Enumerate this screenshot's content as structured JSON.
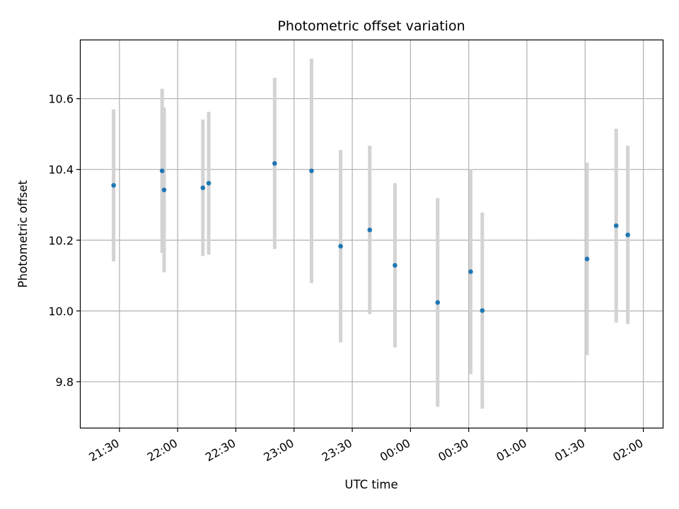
{
  "chart_data": {
    "type": "scatter",
    "title": "Photometric offset variation",
    "xlabel": "UTC time",
    "ylabel": "Photometric offset",
    "grid": true,
    "x_is_time": true,
    "xlim": [
      "21:10",
      "02:10"
    ],
    "ylim": [
      9.67,
      10.765
    ],
    "x_ticks": [
      "21:30",
      "22:00",
      "22:30",
      "23:00",
      "23:30",
      "00:00",
      "00:30",
      "01:00",
      "01:30",
      "02:00"
    ],
    "y_ticks": [
      9.8,
      10.0,
      10.2,
      10.4,
      10.6
    ],
    "y_tick_labels": [
      "9.8",
      "10.0",
      "10.2",
      "10.4",
      "10.6"
    ],
    "colors": {
      "point": "#1f77b4",
      "errorbar": "#d3d3d3",
      "grid": "#b0b0b0"
    },
    "points": [
      {
        "x": "21:27",
        "y": 10.355,
        "err": 0.215
      },
      {
        "x": "21:52",
        "y": 10.396,
        "err": 0.232
      },
      {
        "x": "21:53",
        "y": 10.342,
        "err": 0.233
      },
      {
        "x": "22:13",
        "y": 10.348,
        "err": 0.193
      },
      {
        "x": "22:16",
        "y": 10.361,
        "err": 0.202
      },
      {
        "x": "22:50",
        "y": 10.417,
        "err": 0.242
      },
      {
        "x": "23:09",
        "y": 10.396,
        "err": 0.317
      },
      {
        "x": "23:24",
        "y": 10.183,
        "err": 0.272
      },
      {
        "x": "23:39",
        "y": 10.229,
        "err": 0.238
      },
      {
        "x": "23:52",
        "y": 10.129,
        "err": 0.232
      },
      {
        "x": "00:14",
        "y": 10.024,
        "err": 0.295
      },
      {
        "x": "00:31",
        "y": 10.111,
        "err": 0.29
      },
      {
        "x": "00:37",
        "y": 10.001,
        "err": 0.277
      },
      {
        "x": "01:31",
        "y": 10.147,
        "err": 0.272
      },
      {
        "x": "01:46",
        "y": 10.241,
        "err": 0.274
      },
      {
        "x": "01:52",
        "y": 10.215,
        "err": 0.252
      }
    ]
  }
}
